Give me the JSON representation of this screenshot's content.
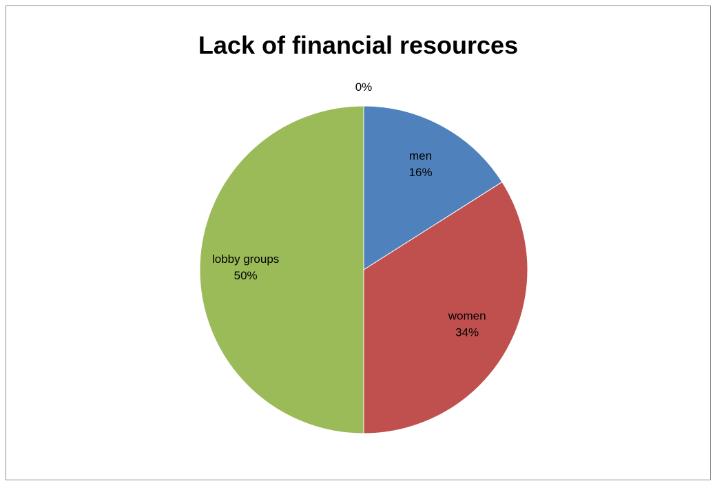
{
  "chart_data": {
    "type": "pie",
    "title": "Lack of financial resources",
    "slices": [
      {
        "label": "",
        "value": 0,
        "percent_label": "0%",
        "color": "#4F81BD"
      },
      {
        "label": "men",
        "value": 16,
        "percent_label": "16%",
        "color": "#4F81BD"
      },
      {
        "label": "women",
        "value": 34,
        "percent_label": "34%",
        "color": "#C0504D"
      },
      {
        "label": "lobby groups",
        "value": 50,
        "percent_label": "50%",
        "color": "#9BBB59"
      }
    ],
    "legend": "none",
    "data_labels": "category and percent"
  }
}
